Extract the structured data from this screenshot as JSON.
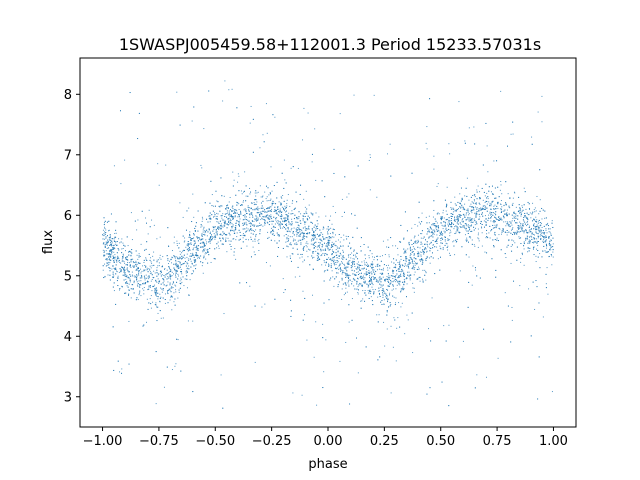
{
  "chart_data": {
    "type": "scatter",
    "title": "1SWASPJ005459.58+112001.3 Period 15233.57031s",
    "xlabel": "phase",
    "ylabel": "flux",
    "xlim": [
      -1.1,
      1.1
    ],
    "ylim": [
      2.5,
      8.6
    ],
    "x_ticks": [
      -1.0,
      -0.75,
      -0.5,
      -0.25,
      0.0,
      0.25,
      0.5,
      0.75,
      1.0
    ],
    "x_tick_labels": [
      "−1.00",
      "−0.75",
      "−0.50",
      "−0.25",
      "0.00",
      "0.25",
      "0.50",
      "0.75",
      "1.00"
    ],
    "y_ticks": [
      3,
      4,
      5,
      6,
      7,
      8
    ],
    "y_tick_labels": [
      "3",
      "4",
      "5",
      "6",
      "7",
      "8"
    ],
    "grid": false,
    "marker_color": "#1f77b4",
    "series": [
      {
        "x": [
          -1.0,
          -0.9,
          -0.8,
          -0.75,
          -0.7,
          -0.6,
          -0.5,
          -0.4,
          -0.3,
          -0.25,
          -0.2,
          -0.1,
          0.0,
          0.1,
          0.2,
          0.25,
          0.3,
          0.4,
          0.5,
          0.6,
          0.7,
          0.75,
          0.8,
          0.9,
          1.0
        ],
        "values": [
          5.5,
          5.15,
          4.95,
          4.92,
          5.0,
          5.4,
          5.75,
          5.95,
          6.0,
          6.0,
          5.95,
          5.7,
          5.4,
          5.1,
          4.95,
          4.92,
          5.0,
          5.35,
          5.75,
          5.95,
          6.02,
          6.0,
          5.9,
          5.75,
          5.5
        ]
      }
    ]
  }
}
